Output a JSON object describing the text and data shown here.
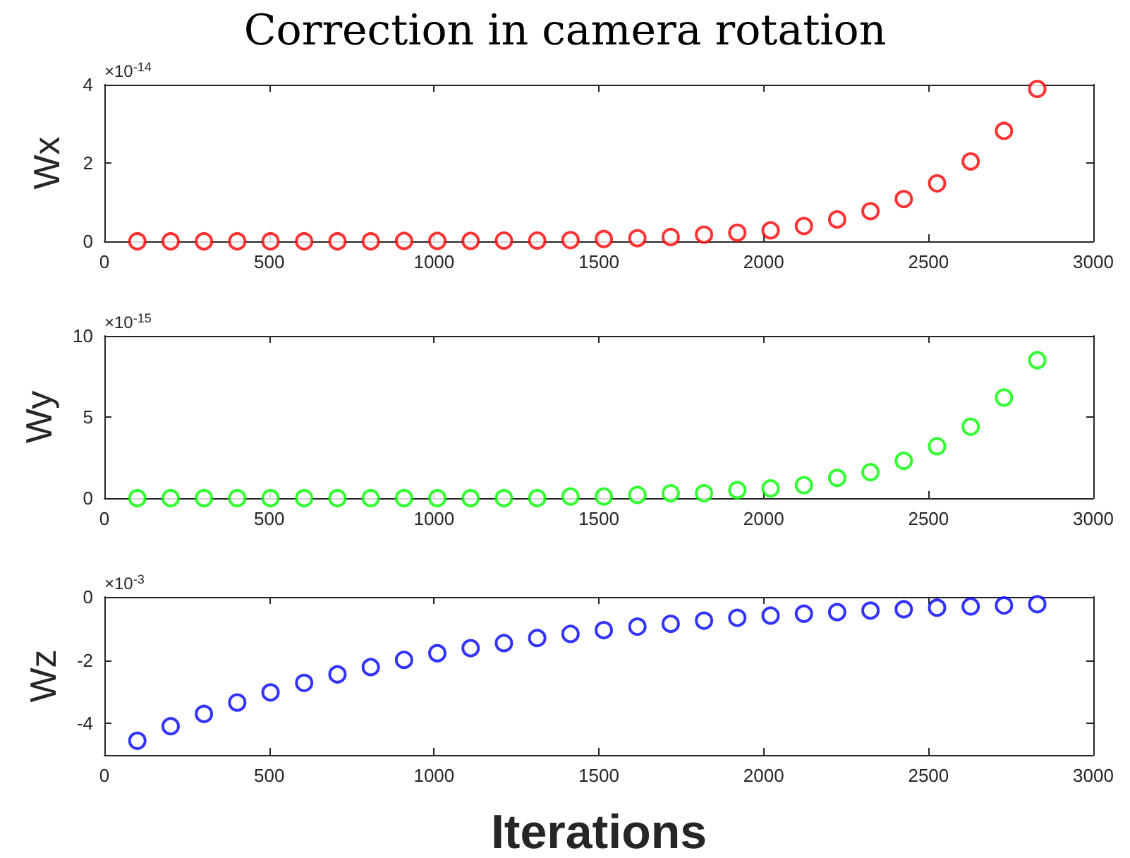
{
  "chart_data": [
    {
      "type": "scatter",
      "title": "Correction in camera rotation",
      "ylabel": "Wx",
      "annotations": [
        "×10$^{-14}$"
      ],
      "marker": "circle",
      "x": [
        100,
        201,
        302,
        403,
        504,
        606,
        707,
        808,
        909,
        1010,
        1111,
        1212,
        1313,
        1414,
        1515,
        1617,
        1718,
        1819,
        1920,
        2021,
        2122,
        2223,
        2324,
        2425,
        2526,
        2628,
        2729,
        2830
      ],
      "series": [
        {
          "color": "#ff0000",
          "values": [
            0,
            0,
            0,
            0,
            0,
            0,
            0,
            0,
            0.01,
            0.01,
            0.01,
            0.02,
            0.02,
            0.03,
            0.06,
            0.08,
            0.11,
            0.17,
            0.22,
            0.28,
            0.39,
            0.56,
            0.77,
            1.08,
            1.48,
            2.04,
            2.82,
            3.89
          ]
        }
      ],
      "xlim": [
        0,
        3000
      ],
      "xticks": [
        0,
        500,
        1000,
        1500,
        2000,
        2500,
        3000
      ],
      "ylim": [
        0,
        4
      ],
      "yticks": [
        0,
        2,
        4
      ]
    },
    {
      "type": "scatter",
      "ylabel": "Wy",
      "annotations": [
        "×10$^{-15}$"
      ],
      "marker": "circle",
      "x": [
        100,
        201,
        302,
        403,
        504,
        606,
        707,
        808,
        909,
        1010,
        1111,
        1212,
        1313,
        1414,
        1515,
        1617,
        1718,
        1819,
        1920,
        2021,
        2122,
        2223,
        2324,
        2425,
        2526,
        2628,
        2729,
        2830
      ],
      "series": [
        {
          "color": "#00ff00",
          "values": [
            0,
            0,
            0,
            0,
            0,
            0,
            0,
            0,
            0,
            0,
            0,
            0,
            0,
            0.1,
            0.1,
            0.2,
            0.3,
            0.3,
            0.5,
            0.6,
            0.8,
            1.25,
            1.6,
            2.3,
            3.2,
            4.4,
            6.2,
            8.5
          ]
        }
      ],
      "xlim": [
        0,
        3000
      ],
      "xticks": [
        0,
        500,
        1000,
        1500,
        2000,
        2500,
        3000
      ],
      "ylim": [
        0,
        10
      ],
      "yticks": [
        0,
        5,
        10
      ]
    },
    {
      "type": "scatter",
      "ylabel": "Wz",
      "xlabel": "Iterations",
      "annotations": [
        "×10$^{-3}$"
      ],
      "marker": "circle",
      "x": [
        100,
        201,
        302,
        403,
        504,
        606,
        707,
        808,
        909,
        1010,
        1111,
        1212,
        1313,
        1414,
        1515,
        1617,
        1718,
        1819,
        1920,
        2021,
        2122,
        2223,
        2324,
        2425,
        2526,
        2628,
        2729,
        2830
      ],
      "series": [
        {
          "color": "#0000ff",
          "values": [
            -4.55,
            -4.09,
            -3.7,
            -3.34,
            -3.02,
            -2.72,
            -2.45,
            -2.22,
            -1.99,
            -1.78,
            -1.62,
            -1.46,
            -1.3,
            -1.17,
            -1.05,
            -0.94,
            -0.85,
            -0.75,
            -0.66,
            -0.59,
            -0.53,
            -0.48,
            -0.43,
            -0.39,
            -0.34,
            -0.3,
            -0.27,
            -0.23
          ]
        }
      ],
      "xlim": [
        0,
        3000
      ],
      "xticks": [
        0,
        500,
        1000,
        1500,
        2000,
        2500,
        3000
      ],
      "ylim": [
        -5,
        0
      ],
      "yticks": [
        -4,
        -2,
        0
      ]
    }
  ]
}
